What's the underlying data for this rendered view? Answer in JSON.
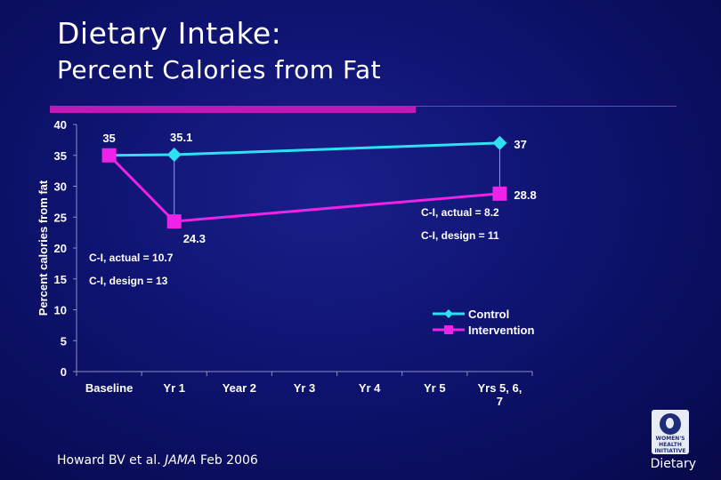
{
  "slide": {
    "title_line1": "Dietary Intake:",
    "title_line2": "Percent Calories from Fat",
    "citation_prefix": "Howard BV et al.",
    "citation_journal": "JAMA",
    "citation_suffix": "Feb 2006",
    "footer_label": "Dietary",
    "logo_text": "WOMEN'S HEALTH INITIATIVE",
    "accent_color": "#c218b8"
  },
  "chart_data": {
    "type": "line",
    "ylabel": "Percent calories from fat",
    "xlabel": "",
    "ylim": [
      0,
      40
    ],
    "yticks": [
      0,
      5,
      10,
      15,
      20,
      25,
      30,
      35,
      40
    ],
    "categories": [
      "Baseline",
      "Yr 1",
      "Year 2",
      "Yr 3",
      "Yr 4",
      "Yr 5",
      "Yrs 5, 6, 7"
    ],
    "series": [
      {
        "name": "Control",
        "color": "#2ee0f2",
        "marker": "diamond",
        "points": [
          {
            "category_index": 0,
            "value": 35,
            "label": "35"
          },
          {
            "category_index": 1,
            "value": 35.1,
            "label": "35.1"
          },
          {
            "category_index": 6,
            "value": 37,
            "label": "37"
          }
        ]
      },
      {
        "name": "Intervention",
        "color": "#ee22e8",
        "marker": "square",
        "points": [
          {
            "category_index": 0,
            "value": 35,
            "label": ""
          },
          {
            "category_index": 1,
            "value": 24.3,
            "label": "24.3"
          },
          {
            "category_index": 6,
            "value": 28.8,
            "label": "28.8"
          }
        ]
      }
    ],
    "annotations": [
      {
        "text": "C-I, actual = 10.7"
      },
      {
        "text": "C-I, design = 13"
      },
      {
        "text": "C-I, actual = 8.2"
      },
      {
        "text": "C-I, design = 11"
      }
    ],
    "legend_position": "bottom-right",
    "grid": false
  }
}
